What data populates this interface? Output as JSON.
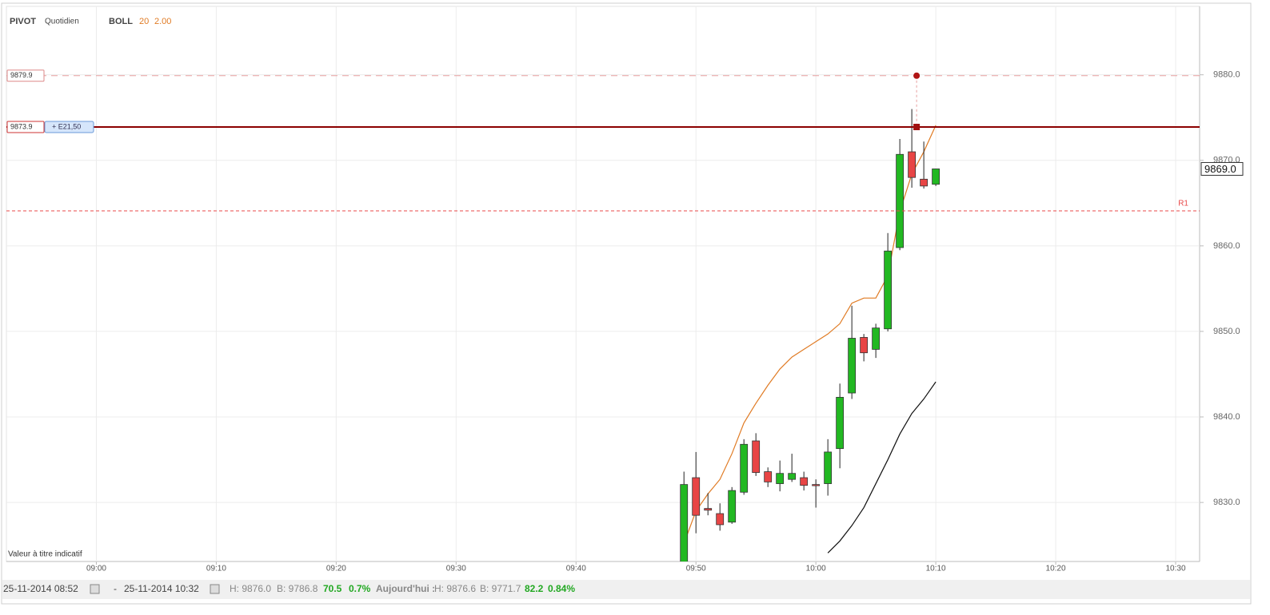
{
  "chart_data": {
    "type": "candlestick",
    "header": {
      "indicator": "PIVOT",
      "period": "Quotidien",
      "study": "BOLL",
      "length": 20,
      "deviation": {
        "value": 2,
        "label": "2.00"
      }
    },
    "note": "Valeur à titre indicatif",
    "xlim": [
      532.5,
      632
    ],
    "xticks": [
      {
        "value": 540,
        "label": "09:00"
      },
      {
        "value": 550,
        "label": "09:10"
      },
      {
        "value": 560,
        "label": "09:20"
      },
      {
        "value": 570,
        "label": "09:30"
      },
      {
        "value": 580,
        "label": "09:40"
      },
      {
        "value": 590,
        "label": "09:50"
      },
      {
        "value": 600,
        "label": "10:00"
      },
      {
        "value": 610,
        "label": "10:10"
      },
      {
        "value": 620,
        "label": "10:20"
      },
      {
        "value": 630,
        "label": "10:30"
      }
    ],
    "ylim": [
      9823.1,
      9888
    ],
    "yticks": [
      {
        "value": 9830,
        "label": "9830.0"
      },
      {
        "value": 9840,
        "label": "9840.0"
      },
      {
        "value": 9850,
        "label": "9850.0"
      },
      {
        "value": 9860,
        "label": "9860.0"
      },
      {
        "value": 9870,
        "label": "9870.0"
      },
      {
        "value": 9880,
        "label": "9880.0"
      }
    ],
    "grid": true,
    "up_color": "#22b822",
    "down_color": "#e84545",
    "x": [
      589,
      590,
      591,
      592,
      593,
      594,
      595,
      596,
      597,
      598,
      599,
      600,
      601,
      602,
      603,
      604,
      605,
      606,
      607,
      608,
      609,
      610
    ],
    "open": [
      9822.5,
      9832.9,
      9829.3,
      9828.7,
      9827.7,
      9831.2,
      9837.2,
      9833.6,
      9832.2,
      9832.7,
      9832.9,
      9832.1,
      9832.2,
      9836.3,
      9842.8,
      9849.3,
      9847.9,
      9850.3,
      9859.8,
      9871.0,
      9867.8,
      9867.2
    ],
    "high": [
      9833.6,
      9835.9,
      9831.1,
      9829.9,
      9831.8,
      9837.4,
      9838.1,
      9834.1,
      9834.9,
      9835.7,
      9833.6,
      9832.7,
      9837.4,
      9843.9,
      9853.0,
      9849.7,
      9850.9,
      9861.5,
      9872.5,
      9876.0,
      9872.2,
      9869.0
    ],
    "low": [
      9821.0,
      9826.4,
      9828.5,
      9826.7,
      9827.5,
      9830.9,
      9833.1,
      9831.8,
      9831.3,
      9832.4,
      9831.4,
      9829.4,
      9830.8,
      9834.0,
      9842.1,
      9846.5,
      9846.9,
      9850.0,
      9859.5,
      9866.8,
      9866.7,
      9867.0
    ],
    "close": [
      9832.1,
      9828.5,
      9829.1,
      9827.4,
      9831.4,
      9836.8,
      9833.5,
      9832.4,
      9833.4,
      9833.4,
      9832.0,
      9832.0,
      9835.9,
      9842.3,
      9849.2,
      9847.5,
      9850.4,
      9859.4,
      9870.7,
      9868.0,
      9867.0,
      9869.0
    ],
    "series": [
      {
        "color": "#e07b24",
        "values": [
          9825.2,
          9829.0,
          9831.0,
          9832.7,
          9835.7,
          9839.3,
          9841.6,
          9843.7,
          9845.6,
          9847.0,
          9847.9,
          9848.8,
          9849.7,
          9850.9,
          9853.3,
          9853.9,
          9853.9,
          9856.5,
          9864.0,
          9868.4,
          9871.0,
          9874.1
        ]
      },
      {
        "color": "#111111",
        "values": [
          null,
          null,
          null,
          null,
          null,
          null,
          null,
          null,
          null,
          null,
          null,
          null,
          9824.1,
          9825.5,
          9827.3,
          9829.4,
          9832.2,
          9835.0,
          9838.0,
          9840.4,
          9842.1,
          9844.1
        ]
      }
    ],
    "levels": [
      {
        "value": 9879.9,
        "color": "#e8a0a0",
        "style": "dashed",
        "order_x": 608.4
      },
      {
        "value": 9873.9,
        "color": "#8b0000",
        "style": "solid",
        "tag": "+ E21,50",
        "order_x": 608.4
      },
      {
        "value": 9864.1,
        "color": "#e84a4a",
        "style": "dotted",
        "label": "R1"
      }
    ],
    "last": {
      "value": 9869,
      "label": "9869.0"
    }
  },
  "status_bar": {
    "from": "25-11-2014 08:52",
    "sep": "-",
    "to": "25-11-2014 10:32",
    "high": "H: 9876.0",
    "low": "B: 9786.8",
    "change": "70.5",
    "change_pct": "0.7%",
    "today": "Aujourd'hui :",
    "today_high": "H: 9876.6",
    "today_low": "B: 9771.7",
    "today_change": "82.2",
    "today_change_pct": "0.84%"
  }
}
